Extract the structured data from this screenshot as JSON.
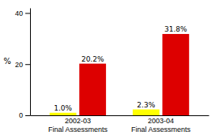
{
  "chart_data": {
    "type": "bar",
    "categories": [
      "2002-03\nFinal Assessments",
      "2003-04\nFinal Assessments"
    ],
    "series": [
      {
        "color": "#FFFF00",
        "values": [
          1.0,
          2.3
        ],
        "value_labels": [
          "1.0%",
          "2.3%"
        ]
      },
      {
        "color": "#DD0000",
        "values": [
          20.2,
          31.8
        ],
        "value_labels": [
          "20.2%",
          "31.8%"
        ]
      }
    ],
    "ylabel": "%",
    "ylim": [
      0,
      42
    ],
    "yticks": [
      0,
      20,
      40
    ],
    "data_labels": true,
    "grid": false
  }
}
